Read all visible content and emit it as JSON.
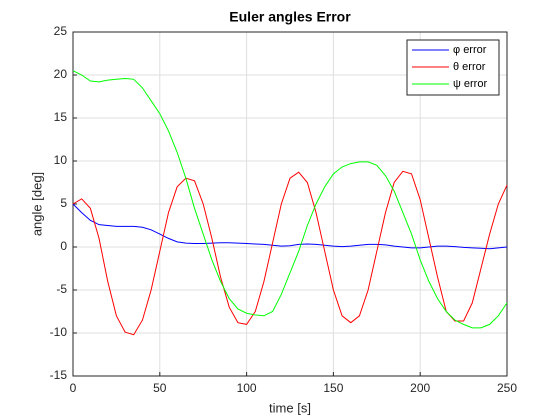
{
  "chart_data": {
    "type": "line",
    "title": "Euler angles Error",
    "xlabel": "time [s]",
    "ylabel": "angle [deg]",
    "x": [
      0,
      5,
      10,
      15,
      20,
      25,
      30,
      35,
      40,
      45,
      50,
      55,
      60,
      65,
      70,
      75,
      80,
      85,
      90,
      95,
      100,
      105,
      110,
      115,
      120,
      125,
      130,
      135,
      140,
      145,
      150,
      155,
      160,
      165,
      170,
      175,
      180,
      185,
      190,
      195,
      200,
      205,
      210,
      215,
      220,
      225,
      230,
      235,
      240,
      245,
      250
    ],
    "series": [
      {
        "name": "φ error",
        "color": "#0000ff",
        "values": [
          5,
          4,
          3.1,
          2.6,
          2.5,
          2.4,
          2.4,
          2.4,
          2.3,
          2.0,
          1.5,
          1.0,
          0.6,
          0.45,
          0.4,
          0.4,
          0.45,
          0.5,
          0.5,
          0.45,
          0.4,
          0.35,
          0.3,
          0.2,
          0.1,
          0.15,
          0.3,
          0.35,
          0.3,
          0.2,
          0.1,
          0.05,
          0.1,
          0.2,
          0.3,
          0.3,
          0.25,
          0.1,
          0,
          -0.1,
          -0.1,
          0,
          0.1,
          0.1,
          0.05,
          -0.05,
          -0.1,
          -0.15,
          -0.2,
          -0.1,
          0
        ]
      },
      {
        "name": "θ error",
        "color": "#ff0000",
        "values": [
          5,
          5.6,
          4.5,
          1,
          -4,
          -8,
          -9.9,
          -10.2,
          -8.5,
          -5,
          -0.5,
          4,
          7,
          8,
          7.7,
          5,
          1,
          -3.5,
          -7,
          -8.8,
          -9,
          -7.5,
          -4,
          0.5,
          5,
          8,
          8.7,
          7.5,
          4,
          -0.5,
          -5,
          -8,
          -8.8,
          -8,
          -5,
          -0.5,
          4,
          7.5,
          8.8,
          8.5,
          5.5,
          1,
          -3.5,
          -7.5,
          -8.6,
          -8.6,
          -6.5,
          -2.5,
          1.5,
          5,
          7.2
        ]
      },
      {
        "name": "ψ error",
        "color": "#00ff00",
        "values": [
          20.5,
          20,
          19.3,
          19.2,
          19.4,
          19.5,
          19.6,
          19.5,
          18.5,
          17,
          15.5,
          13.5,
          11,
          8,
          4.5,
          1.5,
          -1.5,
          -4,
          -6,
          -7.2,
          -7.7,
          -7.9,
          -8,
          -7.5,
          -5.5,
          -3,
          -0.5,
          2.5,
          5,
          7,
          8.5,
          9.3,
          9.7,
          9.9,
          9.9,
          9.5,
          8.3,
          6.5,
          4,
          1.5,
          -1.5,
          -4,
          -6,
          -7.5,
          -8.5,
          -9,
          -9.4,
          -9.4,
          -9,
          -8,
          -6.5
        ]
      }
    ],
    "xlim": [
      0,
      250
    ],
    "xticks": [
      0,
      50,
      100,
      150,
      200,
      250
    ],
    "ylim": [
      -15,
      25
    ],
    "yticks": [
      -15,
      -10,
      -5,
      0,
      5,
      10,
      15,
      20,
      25
    ],
    "grid": true,
    "legend": "top-right"
  }
}
